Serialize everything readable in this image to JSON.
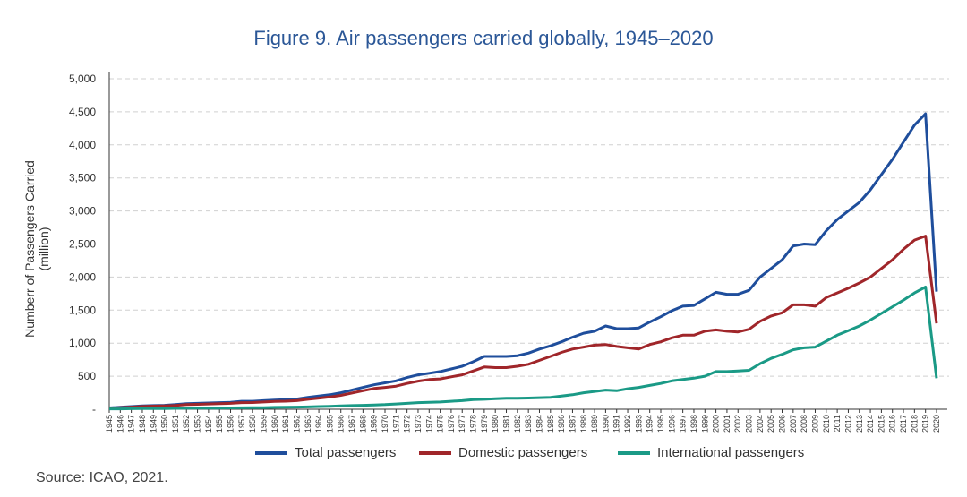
{
  "chart_data": {
    "type": "line",
    "title": "Figure 9. Air passengers carried globally, 1945–2020",
    "xlabel": "",
    "ylabel": "Numberr of Passengers Carried (million)",
    "ylabel_lines": [
      "Numberr of Passengers Carried",
      "(million)"
    ],
    "ylim": [
      0,
      5000
    ],
    "yticks": [
      0,
      500,
      1000,
      1500,
      2000,
      2500,
      3000,
      3500,
      4000,
      4500,
      5000
    ],
    "ytick_labels": [
      "-",
      "500",
      "1,000",
      "1,500",
      "2,000",
      "2,500",
      "3,000",
      "3,500",
      "4,000",
      "4,500",
      "5,000"
    ],
    "grid": "horizontal dashed",
    "legend_position": "bottom",
    "x": [
      1945,
      1946,
      1947,
      1948,
      1949,
      1950,
      1951,
      1952,
      1953,
      1954,
      1955,
      1956,
      1957,
      1958,
      1959,
      1960,
      1961,
      1962,
      1963,
      1964,
      1965,
      1966,
      1967,
      1968,
      1969,
      1970,
      1971,
      1972,
      1973,
      1974,
      1975,
      1976,
      1977,
      1978,
      1979,
      1980,
      1981,
      1982,
      1983,
      1984,
      1985,
      1986,
      1987,
      1988,
      1989,
      1990,
      1991,
      1992,
      1993,
      1994,
      1995,
      1996,
      1997,
      1998,
      1999,
      2000,
      2001,
      2002,
      2003,
      2004,
      2005,
      2006,
      2007,
      2008,
      2009,
      2010,
      2011,
      2012,
      2013,
      2014,
      2015,
      2016,
      2017,
      2018,
      2019,
      2020
    ],
    "series": [
      {
        "name": "Total passengers",
        "color": "#1f4e9c",
        "values": [
          20,
          30,
          40,
          50,
          55,
          60,
          70,
          85,
          90,
          95,
          100,
          105,
          120,
          120,
          130,
          140,
          145,
          155,
          180,
          200,
          220,
          250,
          290,
          330,
          370,
          400,
          430,
          480,
          520,
          545,
          570,
          610,
          650,
          720,
          800,
          800,
          800,
          810,
          850,
          910,
          960,
          1020,
          1090,
          1150,
          1180,
          1260,
          1220,
          1220,
          1230,
          1320,
          1400,
          1490,
          1560,
          1570,
          1670,
          1770,
          1740,
          1740,
          1800,
          2000,
          2130,
          2260,
          2470,
          2500,
          2490,
          2700,
          2870,
          3000,
          3130,
          3320,
          3550,
          3780,
          4040,
          4300,
          4470,
          1780
        ]
      },
      {
        "name": "Domestic passengers",
        "color": "#a0262a",
        "values": [
          15,
          25,
          33,
          42,
          47,
          52,
          58,
          70,
          75,
          80,
          85,
          90,
          100,
          102,
          110,
          118,
          122,
          130,
          150,
          168,
          185,
          210,
          245,
          280,
          315,
          330,
          350,
          390,
          425,
          450,
          460,
          490,
          520,
          580,
          640,
          630,
          630,
          650,
          680,
          740,
          800,
          860,
          910,
          940,
          970,
          980,
          950,
          930,
          910,
          980,
          1020,
          1080,
          1120,
          1120,
          1180,
          1200,
          1180,
          1170,
          1210,
          1330,
          1410,
          1460,
          1580,
          1580,
          1560,
          1690,
          1760,
          1830,
          1910,
          2000,
          2130,
          2260,
          2420,
          2560,
          2620,
          1300
        ]
      },
      {
        "name": "International passengers",
        "color": "#1a9a86",
        "values": [
          5,
          6,
          8,
          9,
          10,
          11,
          13,
          15,
          16,
          17,
          18,
          20,
          22,
          23,
          25,
          28,
          30,
          32,
          35,
          40,
          45,
          50,
          55,
          60,
          65,
          70,
          80,
          90,
          100,
          105,
          110,
          120,
          130,
          145,
          150,
          160,
          165,
          165,
          170,
          175,
          180,
          200,
          220,
          250,
          270,
          290,
          280,
          310,
          330,
          360,
          390,
          430,
          450,
          470,
          500,
          570,
          570,
          580,
          590,
          690,
          770,
          830,
          900,
          930,
          940,
          1030,
          1120,
          1190,
          1260,
          1350,
          1450,
          1550,
          1650,
          1760,
          1850,
          470
        ]
      }
    ]
  },
  "source": "Source: ICAO, 2021."
}
